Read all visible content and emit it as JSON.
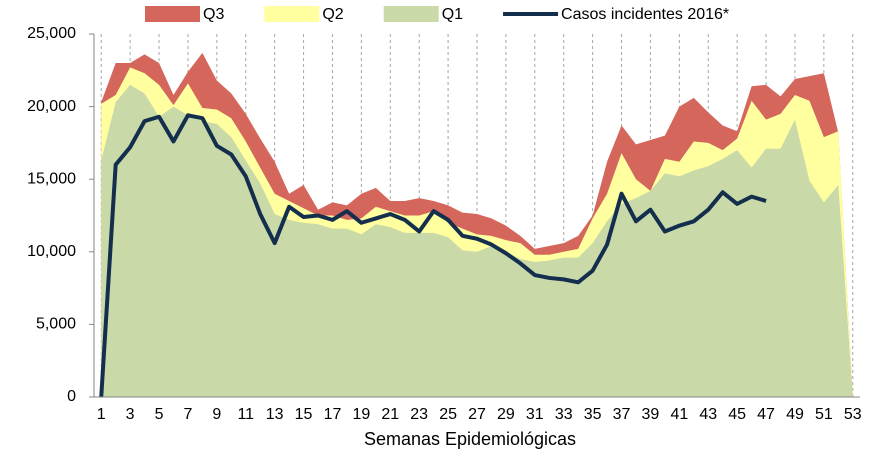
{
  "chart_data": {
    "type": "area",
    "x_label": "Semanas Epidemiológicas",
    "x": [
      1,
      2,
      3,
      4,
      5,
      6,
      7,
      8,
      9,
      10,
      11,
      12,
      13,
      14,
      15,
      16,
      17,
      18,
      19,
      20,
      21,
      22,
      23,
      24,
      25,
      26,
      27,
      28,
      29,
      30,
      31,
      32,
      33,
      34,
      35,
      36,
      37,
      38,
      39,
      40,
      41,
      42,
      43,
      44,
      45,
      46,
      47,
      48,
      49,
      50,
      51,
      52,
      53
    ],
    "xlim": [
      0.5,
      53.5
    ],
    "xticks": [
      1,
      3,
      5,
      7,
      9,
      11,
      13,
      15,
      17,
      19,
      21,
      23,
      25,
      27,
      29,
      31,
      33,
      35,
      37,
      39,
      41,
      43,
      45,
      47,
      49,
      51,
      53
    ],
    "ylim": [
      0,
      25000
    ],
    "yticks": [
      {
        "value": 0,
        "label": "0"
      },
      {
        "value": 5000,
        "label": "5,000"
      },
      {
        "value": 10000,
        "label": "10,000"
      },
      {
        "value": 15000,
        "label": "15,000"
      },
      {
        "value": 20000,
        "label": "20,000"
      },
      {
        "value": 25000,
        "label": "25,000"
      }
    ],
    "grid": true,
    "legend": "top",
    "series": [
      {
        "name": "Q3",
        "type": "area",
        "color": "#d4665c",
        "values": [
          20300,
          23000,
          23000,
          23600,
          23000,
          20800,
          22400,
          23700,
          21800,
          20900,
          19500,
          17800,
          16200,
          14000,
          14600,
          12900,
          13400,
          13200,
          14000,
          14400,
          13500,
          13500,
          13700,
          13500,
          13200,
          12700,
          12600,
          12300,
          11800,
          11100,
          10200,
          10400,
          10600,
          11100,
          12500,
          16200,
          18700,
          17400,
          17700,
          18000,
          20000,
          20600,
          19600,
          18700,
          18300,
          21400,
          21500,
          20700,
          21900,
          22100,
          22300,
          18200,
          0
        ]
      },
      {
        "name": "Q2",
        "type": "area",
        "color": "#ffffa0",
        "values": [
          20200,
          20800,
          22700,
          22300,
          21500,
          20100,
          21600,
          19900,
          19800,
          19200,
          17600,
          15800,
          14000,
          13500,
          13000,
          12500,
          12500,
          12200,
          12300,
          13100,
          12800,
          12500,
          12500,
          12800,
          12000,
          11600,
          11200,
          11100,
          10800,
          10600,
          9800,
          9800,
          10000,
          10200,
          12300,
          14000,
          16800,
          15000,
          14200,
          16400,
          16200,
          17600,
          17500,
          17000,
          17800,
          20400,
          19100,
          19500,
          20800,
          20400,
          17900,
          18300,
          0
        ]
      },
      {
        "name": "Q1",
        "type": "area",
        "color": "#c9d9a8",
        "values": [
          16300,
          20300,
          21500,
          20900,
          19300,
          20000,
          19400,
          19000,
          18800,
          17900,
          16300,
          14700,
          12600,
          12200,
          12000,
          11900,
          11600,
          11600,
          11200,
          11900,
          11700,
          11300,
          11300,
          11300,
          11000,
          10100,
          10000,
          10400,
          10000,
          9500,
          9300,
          9400,
          9600,
          9600,
          10600,
          12100,
          13300,
          13700,
          14200,
          15400,
          15200,
          15600,
          15900,
          16400,
          17000,
          15800,
          17100,
          17100,
          19100,
          14900,
          13400,
          14600,
          0
        ]
      },
      {
        "name": "Casos incidentes 2016*",
        "type": "line",
        "color": "#142f4e",
        "values": [
          0,
          16000,
          17200,
          19000,
          19300,
          17600,
          19400,
          19200,
          17300,
          16700,
          15200,
          12600,
          10600,
          13100,
          12400,
          12500,
          12200,
          12800,
          12000,
          12300,
          12600,
          12200,
          11400,
          12800,
          12200,
          11100,
          10900,
          10500,
          9900,
          9200,
          8400,
          8200,
          8100,
          7900,
          8700,
          10500,
          14000,
          12100,
          12900,
          11400,
          11800,
          12100,
          12900,
          14100,
          13300,
          13800,
          13500,
          null,
          null,
          null,
          null,
          null,
          null
        ]
      }
    ]
  }
}
